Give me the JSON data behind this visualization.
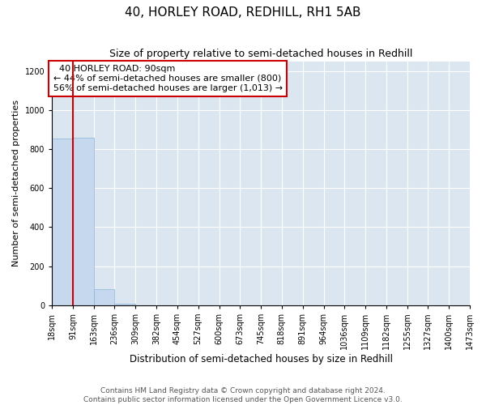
{
  "title": "40, HORLEY ROAD, REDHILL, RH1 5AB",
  "subtitle": "Size of property relative to semi-detached houses in Redhill",
  "xlabel": "Distribution of semi-detached houses by size in Redhill",
  "ylabel": "Number of semi-detached properties",
  "footer1": "Contains HM Land Registry data © Crown copyright and database right 2024.",
  "footer2": "Contains public sector information licensed under the Open Government Licence v3.0.",
  "property_label": "40 HORLEY ROAD: 90sqm",
  "pct_smaller": 44,
  "count_smaller": 800,
  "pct_larger": 56,
  "count_larger": 1013,
  "bin_edges": [
    18,
    91,
    163,
    236,
    309,
    382,
    454,
    527,
    600,
    673,
    745,
    818,
    891,
    964,
    1036,
    1109,
    1182,
    1255,
    1327,
    1400,
    1473
  ],
  "bin_heights": [
    855,
    860,
    83,
    6,
    0,
    0,
    0,
    0,
    0,
    0,
    0,
    0,
    0,
    0,
    0,
    0,
    0,
    0,
    0,
    0
  ],
  "bar_color": "#c5d8ee",
  "bar_edge_color": "#8ab4d8",
  "bar_linewidth": 0.5,
  "vline_color": "#cc0000",
  "vline_x": 91,
  "annotation_box_color": "#cc0000",
  "ylim": [
    0,
    1250
  ],
  "yticks": [
    0,
    200,
    400,
    600,
    800,
    1000,
    1200
  ],
  "bg_color": "#dce6f0",
  "grid_color": "#ffffff",
  "tick_label_fontsize": 7,
  "title_fontsize": 11,
  "subtitle_fontsize": 9,
  "xlabel_fontsize": 8.5,
  "ylabel_fontsize": 8,
  "annotation_fontsize": 8,
  "footer_fontsize": 6.5
}
